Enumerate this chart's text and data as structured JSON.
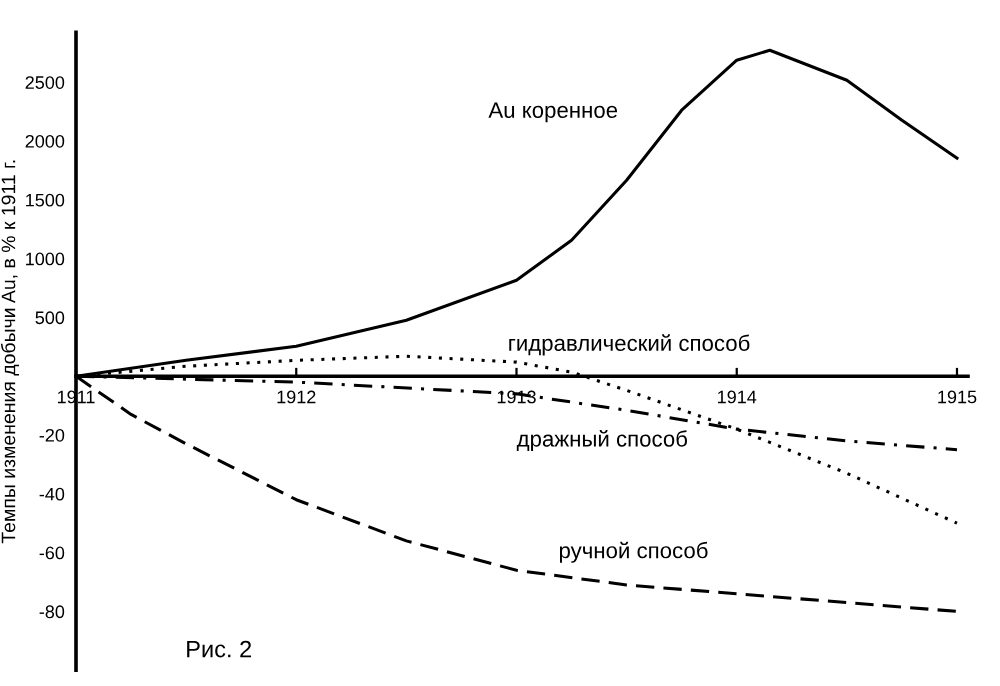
{
  "chart_data": {
    "type": "line",
    "ylabel": "Темпы изменения добычи Au, в % к 1911 г.",
    "x": [
      1911,
      1911.5,
      1912,
      1912.5,
      1913,
      1913.25,
      1913.5,
      1913.75,
      1914,
      1914.15,
      1914.5,
      1914.75,
      1915
    ],
    "xlim": [
      1911,
      1915.05
    ],
    "xticks": [
      1911,
      1912,
      1913,
      1914,
      1915
    ],
    "ylim": [
      -2500,
      2925
    ],
    "yticks": [
      500,
      1000,
      1500,
      2000,
      2500
    ],
    "y2lim": [
      -100,
      117
    ],
    "y2ticks": [
      -20,
      -40,
      -60,
      -80
    ],
    "grid": false,
    "legend": false,
    "series": [
      {
        "name": "Au коренное",
        "color": "#000000",
        "line_style": "solid",
        "values": [
          0,
          136,
          255,
          476,
          816,
          1156,
          1667,
          2262,
          2687,
          2772,
          2517,
          2177,
          1854
        ]
      },
      {
        "name": "гидравлический способ",
        "color": "#000000",
        "line_style": "dotted",
        "axis": "y2",
        "x": [
          1911,
          1911.5,
          1912,
          1912.5,
          1913,
          1913.25,
          1913.5,
          1914,
          1914.5,
          1915
        ],
        "values": [
          0,
          3.4,
          5.4,
          6.8,
          4.8,
          1.4,
          -4.8,
          -18,
          -33,
          -50
        ]
      },
      {
        "name": "дражный способ",
        "color": "#000000",
        "line_style": "dashdot",
        "axis": "y2",
        "x": [
          1911,
          1912,
          1913,
          1913.5,
          1914,
          1914.5,
          1915
        ],
        "values": [
          0,
          -2,
          -6,
          -11.6,
          -18,
          -22,
          -25
        ]
      },
      {
        "name": "ручной способ",
        "color": "#000000",
        "line_style": "dashed",
        "axis": "y2",
        "x": [
          1911,
          1911.25,
          1911.5,
          1912,
          1912.5,
          1913,
          1913.5,
          1914,
          1914.5,
          1915
        ],
        "values": [
          0,
          -13,
          -23,
          -42,
          -56,
          -66,
          -71,
          -74,
          -77,
          -80
        ]
      }
    ],
    "annotations": [
      "Рис. 2"
    ]
  }
}
